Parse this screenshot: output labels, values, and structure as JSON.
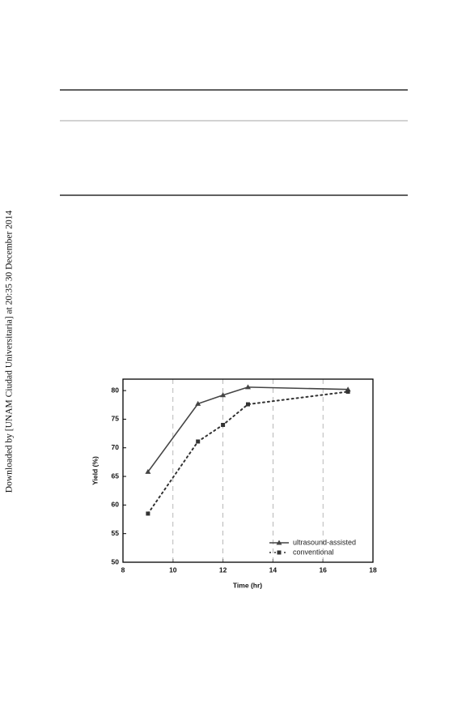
{
  "side_note": "Downloaded by [UNAM Ciudad Universitaria] at 20:35 30 December 2014",
  "chart_data": {
    "type": "line",
    "x_label": "Time (hr)",
    "y_label": "Yield (%)",
    "x": [
      9,
      11,
      12,
      13,
      17
    ],
    "series": [
      {
        "name": "ultrasound-assisted",
        "color": "#444444",
        "line_style": "solid",
        "marker": "triangle",
        "values": [
          65.8,
          77.7,
          79.2,
          80.6,
          80.2
        ]
      },
      {
        "name": "conventional",
        "color": "#333333",
        "line_style": "dotted",
        "marker": "square",
        "values": [
          58.5,
          71.1,
          74.0,
          77.6,
          79.8
        ]
      }
    ],
    "xlim": [
      8,
      18
    ],
    "xticks": [
      8,
      10,
      12,
      14,
      16,
      18
    ],
    "ylim": [
      50,
      82
    ],
    "yticks": [
      50,
      55,
      60,
      65,
      70,
      75,
      80
    ],
    "grid": "x",
    "legend": "lower right"
  }
}
